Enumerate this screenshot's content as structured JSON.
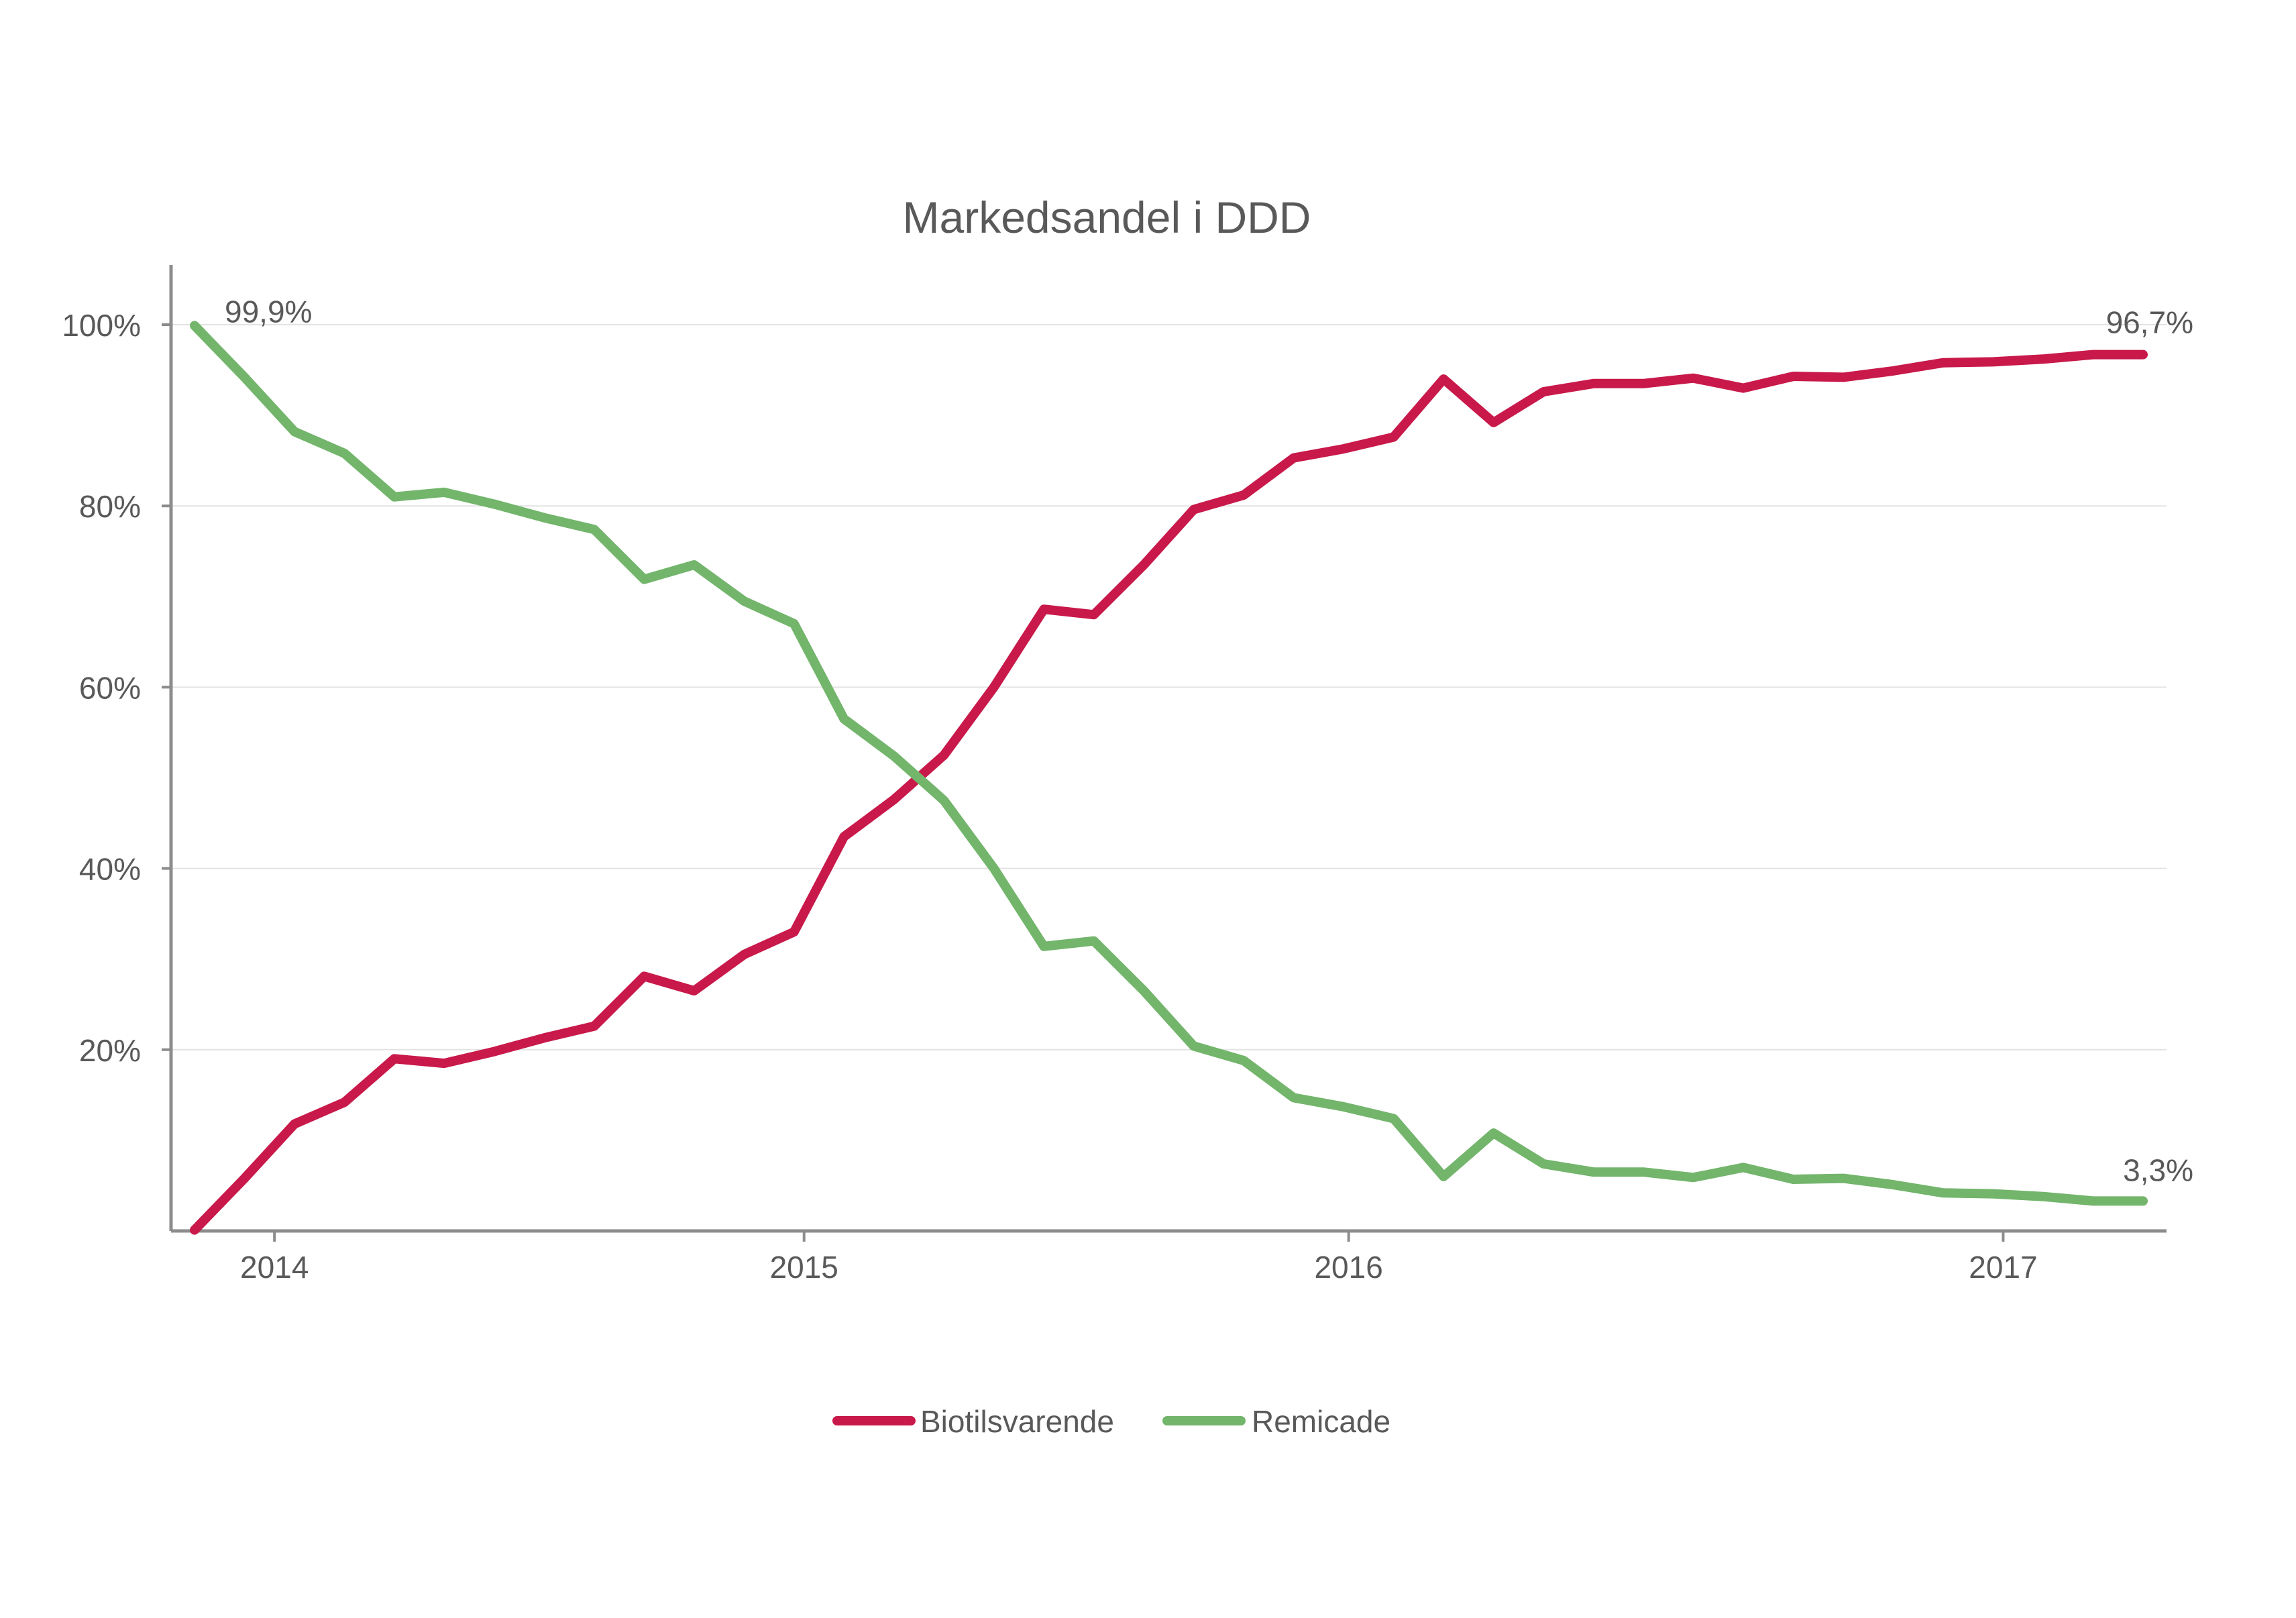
{
  "chart_data": {
    "type": "line",
    "title": "Markedsandel i DDD",
    "xlabel": "",
    "ylabel": "",
    "ylim": [
      0,
      100
    ],
    "y_ticks": [
      {
        "value": 20,
        "label": "20%"
      },
      {
        "value": 40,
        "label": "40%"
      },
      {
        "value": 60,
        "label": "60%"
      },
      {
        "value": 80,
        "label": "80%"
      },
      {
        "value": 100,
        "label": "100%"
      }
    ],
    "x_ticks": [
      {
        "label": "2014",
        "index": 1.6
      },
      {
        "label": "2015",
        "index": 12.2
      },
      {
        "label": "2016",
        "index": 23.1
      },
      {
        "label": "2017",
        "index": 36.2
      }
    ],
    "grid": true,
    "legend_position": "bottom",
    "series": [
      {
        "name": "Biotilsvarende",
        "color": "#c8194a",
        "values": [
          0.1,
          5.8,
          11.8,
          14.2,
          19.0,
          18.5,
          19.8,
          21.3,
          22.6,
          28.1,
          26.5,
          30.5,
          33.0,
          43.5,
          47.6,
          52.5,
          60.0,
          68.6,
          68.0,
          73.5,
          79.6,
          81.2,
          85.3,
          86.3,
          87.6,
          94.0,
          89.2,
          92.6,
          93.5,
          93.5,
          94.1,
          93.0,
          94.3,
          94.2,
          94.9,
          95.8,
          95.9,
          96.2,
          96.7,
          96.7
        ]
      },
      {
        "name": "Remicade",
        "color": "#72b56b",
        "values": [
          99.9,
          94.2,
          88.2,
          85.8,
          81.0,
          81.5,
          80.2,
          78.7,
          77.4,
          71.9,
          73.5,
          69.5,
          67.0,
          56.5,
          52.4,
          47.5,
          40.0,
          31.4,
          32.0,
          26.5,
          20.4,
          18.8,
          14.7,
          13.7,
          12.4,
          6.0,
          10.8,
          7.4,
          6.5,
          6.5,
          5.9,
          7.0,
          5.7,
          5.8,
          5.1,
          4.2,
          4.1,
          3.8,
          3.3,
          3.3
        ]
      }
    ],
    "annotations": [
      {
        "series": 1,
        "index": 0,
        "label": "99,9%"
      },
      {
        "series": 0,
        "index": 39,
        "label": "96,7%"
      },
      {
        "series": 1,
        "index": 39,
        "label": "3,3%"
      }
    ]
  }
}
